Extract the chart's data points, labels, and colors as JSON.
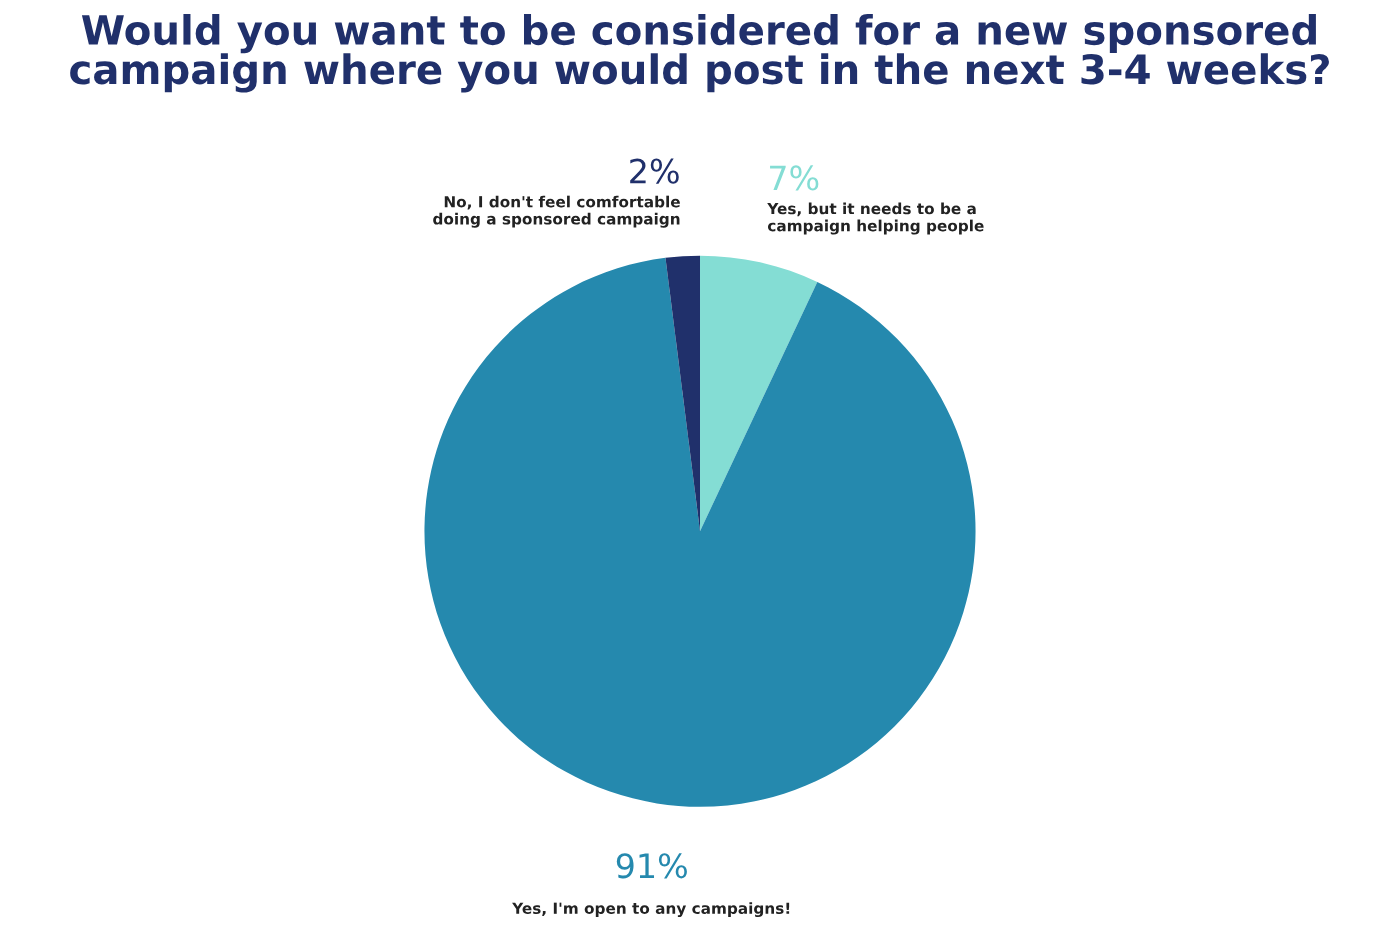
{
  "chart_data": {
    "type": "pie",
    "title": "Would you want to be considered for a new sponsored\ncampaign where you would post in the next 3-4 weeks?",
    "categories": [
      "Yes, but it needs to be a\ncampaign helping people",
      "Yes, I'm open to any campaigns!",
      "No, I don't feel comfortable\ndoing a sponsored campaign"
    ],
    "values": [
      7,
      91,
      2
    ],
    "colors": [
      "#84ddd4",
      "#2589ae",
      "#20306b"
    ],
    "value_labels": [
      "7%",
      "91%",
      "2%"
    ]
  }
}
